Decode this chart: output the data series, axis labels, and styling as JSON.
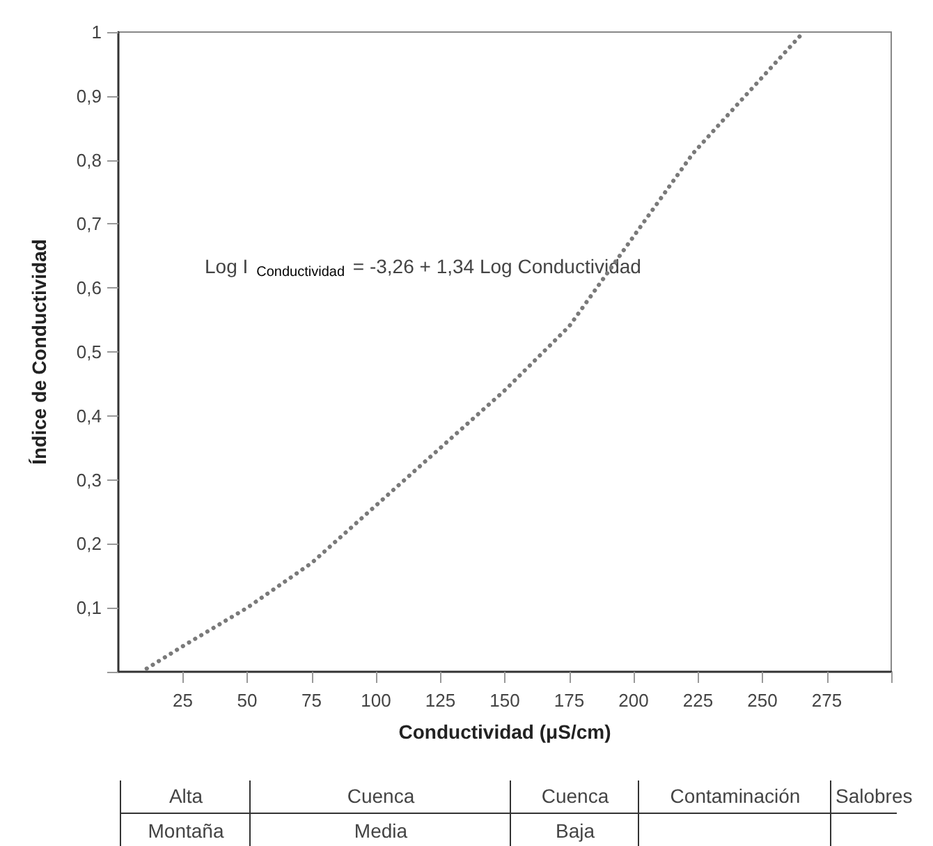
{
  "chart_data": {
    "type": "line",
    "xlabel": "Conductividad (μS/cm)",
    "ylabel": "Índice de Conductividad",
    "x": [
      11,
      25,
      50,
      75,
      100,
      125,
      150,
      175,
      191,
      223,
      241,
      266
    ],
    "series": [
      {
        "color": "#7a7a7a",
        "values": [
          0.005,
          0.04,
          0.1,
          0.17,
          0.26,
          0.35,
          0.44,
          0.54,
          0.63,
          0.81,
          0.89,
          1
        ]
      }
    ],
    "xlim": [
      0,
      300
    ],
    "xticks": [
      25,
      50,
      75,
      100,
      125,
      150,
      175,
      200,
      225,
      250,
      275,
      {
        "value": 300,
        "label": null
      }
    ],
    "ylim": [
      0,
      1
    ],
    "yticks": [
      {
        "value": 0,
        "label": null
      },
      {
        "value": 0.1,
        "label": "0,1"
      },
      {
        "value": 0.2,
        "label": "0,2"
      },
      {
        "value": 0.3,
        "label": "0,3"
      },
      {
        "value": 0.4,
        "label": "0,4"
      },
      {
        "value": 0.5,
        "label": "0,5"
      },
      {
        "value": 0.6,
        "label": "0,6"
      },
      {
        "value": 0.7,
        "label": "0,7"
      },
      {
        "value": 0.8,
        "label": "0,8"
      },
      {
        "value": 0.9,
        "label": "0,9"
      },
      1
    ],
    "grid": false,
    "marker": "none",
    "line_style": "dotted",
    "annotations": [
      "Log I$_{Conductividad}$ = -3,26 + 1,34 Log Conductividad",
      "Alta Montaña",
      "Cuenca Media",
      "Cuenca Baja",
      "Contaminación",
      "Salobres"
    ]
  }
}
